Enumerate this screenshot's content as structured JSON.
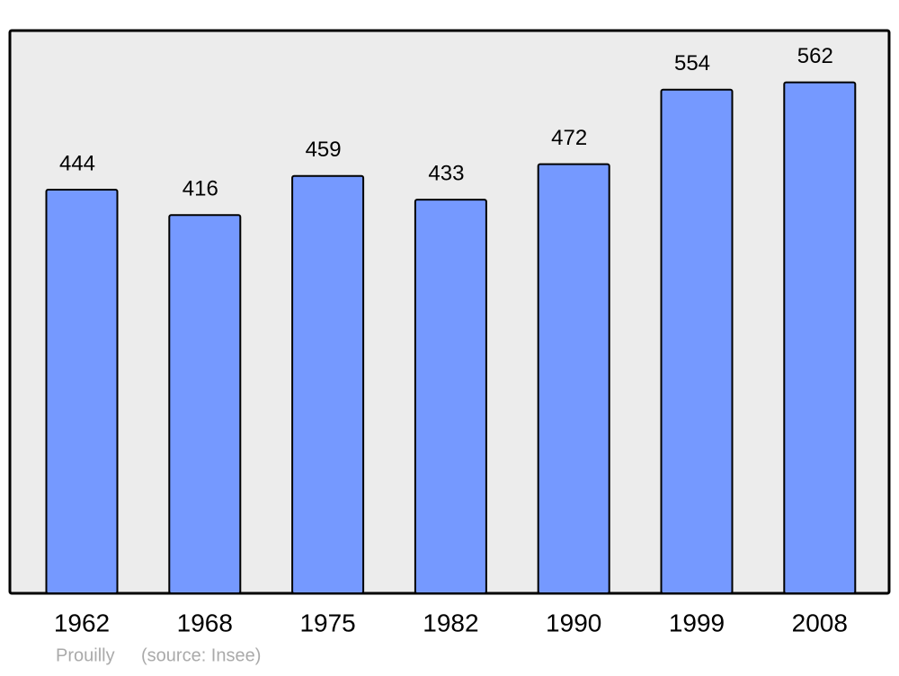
{
  "chart_data": {
    "type": "bar",
    "categories": [
      "1962",
      "1968",
      "1975",
      "1982",
      "1990",
      "1999",
      "2008"
    ],
    "values": [
      444,
      416,
      459,
      433,
      472,
      554,
      562
    ],
    "color": "#7599ff",
    "ylim": [
      0,
      618
    ],
    "place": "Prouilly",
    "source": "(source: Insee)"
  }
}
